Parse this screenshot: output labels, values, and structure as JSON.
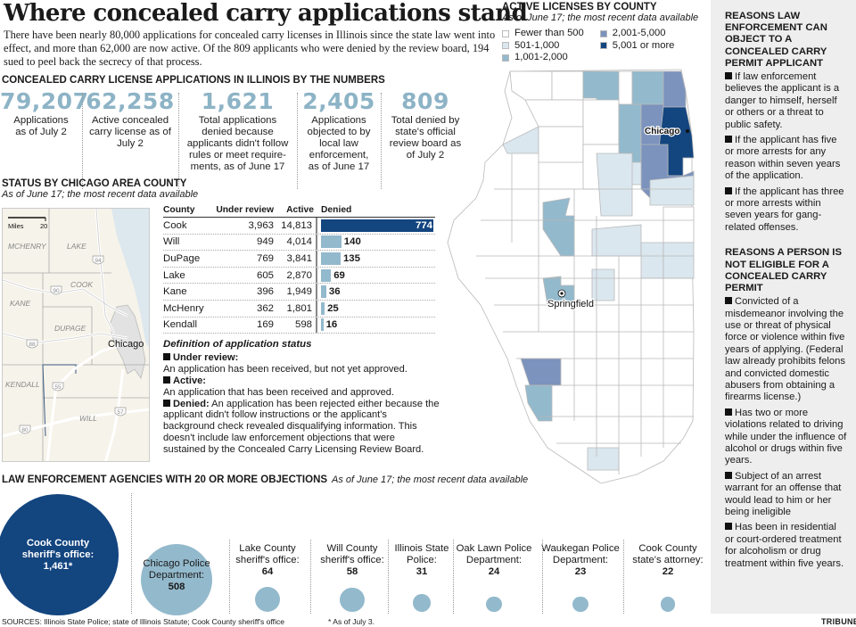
{
  "header": {
    "title": "Where concealed carry applications stand",
    "dek": "There have been nearly 80,000 applications for concealed carry licenses in Illinois since the state law went into effect, and more than 62,000 are now active. Of the 809 applicants who were denied by the review board, 194 sued to peel back the secrecy of that process."
  },
  "by_the_numbers": {
    "title": "Concealed carry license applications in Illinois by the numbers",
    "items": [
      {
        "value": "79,207",
        "label": "Applications as of July 2"
      },
      {
        "value": "62,258",
        "label": "Active concealed carry license as of July 2"
      },
      {
        "value": "1,621",
        "label": "Total applications denied because applicants didn't follow rules or meet require-ments, as of June 17"
      },
      {
        "value": "2,405",
        "label": "Applications objected to by local law enforcement, as of June 17"
      },
      {
        "value": "809",
        "label": "Total denied by state's official review board as of July 2"
      }
    ]
  },
  "county_status": {
    "title": "Status by Chicago area county",
    "subtitle": "As of June 17; the most recent data available",
    "map": {
      "scale_label": "Miles",
      "scale_value": "20",
      "labels": [
        "MCHENRY",
        "LAKE",
        "COOK",
        "KANE",
        "DUPAGE",
        "KENDALL",
        "WILL"
      ],
      "city": "Chicago",
      "highways": [
        "94",
        "90",
        "88",
        "55",
        "57",
        "80"
      ]
    },
    "columns": [
      "County",
      "Under review",
      "Active",
      "Denied"
    ],
    "rows": [
      {
        "county": "Cook",
        "under_review": "3,963",
        "active": "14,813",
        "denied": 774
      },
      {
        "county": "Will",
        "under_review": "949",
        "active": "4,014",
        "denied": 140
      },
      {
        "county": "DuPage",
        "under_review": "769",
        "active": "3,841",
        "denied": 135
      },
      {
        "county": "Lake",
        "under_review": "605",
        "active": "2,870",
        "denied": 69
      },
      {
        "county": "Kane",
        "under_review": "396",
        "active": "1,949",
        "denied": 36
      },
      {
        "county": "McHenry",
        "under_review": "362",
        "active": "1,801",
        "denied": 25
      },
      {
        "county": "Kendall",
        "under_review": "169",
        "active": "598",
        "denied": 16
      }
    ],
    "colors": {
      "bar": "#93b9cc",
      "bar_max": "#13457f"
    }
  },
  "definitions": {
    "title": "Definition of application status",
    "items": [
      {
        "term": "Under review:",
        "text": "An application has been received, but not yet approved."
      },
      {
        "term": "Active:",
        "text": "An application that has been received and approved."
      },
      {
        "term": "Denied:",
        "text": "An application has been rejected either because the applicant didn't follow instructions or the applicant's background check revealed disqualifying information. This doesn't include law enforcement objections that were sustained by the Concealed Carry Licensing Review Board."
      }
    ]
  },
  "active_map": {
    "title": "Active licenses by county",
    "subtitle": "As of June 17; the most recent data available",
    "legend": [
      {
        "label": "Fewer than 500",
        "color": "#ffffff"
      },
      {
        "label": "501-1,000",
        "color": "#dbe7ef"
      },
      {
        "label": "1,001-2,000",
        "color": "#93b9cc"
      },
      {
        "label": "2,001-5,000",
        "color": "#7b93bd"
      },
      {
        "label": "5,001 or more",
        "color": "#13457f"
      }
    ],
    "cities": [
      "Chicago",
      "Springfield"
    ]
  },
  "sidebar": {
    "section1": {
      "title": "Reasons law enforcement can object to a concealed carry permit applicant",
      "items": [
        "If law enforcement believes the applicant is a danger to himself, herself or others or a threat to public safety.",
        "If the applicant has five or more arrests for any reason within seven years of the application.",
        "If the applicant has three or more arrests within seven years for gang-related offenses."
      ]
    },
    "section2": {
      "title": "Reasons a person is not eligible for a concealed carry permit",
      "items": [
        "Convicted of a misdemeanor involving the use or threat of physical force or violence within five years of applying. (Federal law already prohibits felons and convicted domestic abusers from obtaining a firearms license.)",
        "Has two or more violations related to driving while under the influence of alcohol or drugs within five years.",
        "Subject of an arrest warrant for an offense that would lead to him or her being ineligible",
        "Has been in residential or court-ordered treatment for alcoholism or drug treatment within five years."
      ]
    }
  },
  "agencies": {
    "title": "Law enforcement agencies with 20 or more objections",
    "subtitle": "As of June 17; the most recent data available",
    "items": [
      {
        "name": "Cook County sheriff's office:",
        "value": "1,461*",
        "count": 1461
      },
      {
        "name": "Chicago Police Department:",
        "value": "508",
        "count": 508
      },
      {
        "name": "Lake County sheriff's office:",
        "value": "64",
        "count": 64
      },
      {
        "name": "Will County sheriff's office:",
        "value": "58",
        "count": 58
      },
      {
        "name": "Illinois State Police:",
        "value": "31",
        "count": 31
      },
      {
        "name": "Oak Lawn Police Department:",
        "value": "24",
        "count": 24
      },
      {
        "name": "Waukegan Police Department:",
        "value": "23",
        "count": 23
      },
      {
        "name": "Cook County state's attorney:",
        "value": "22",
        "count": 22
      }
    ],
    "footnote": "* As of July 3.",
    "colors": {
      "large": "#13457f",
      "small": "#93b9cc"
    }
  },
  "footer": {
    "sources": "SOURCES: Illinois State Police; state of Illinois Statute; Cook County sheriff's office",
    "credit": "TRIBUNE"
  }
}
